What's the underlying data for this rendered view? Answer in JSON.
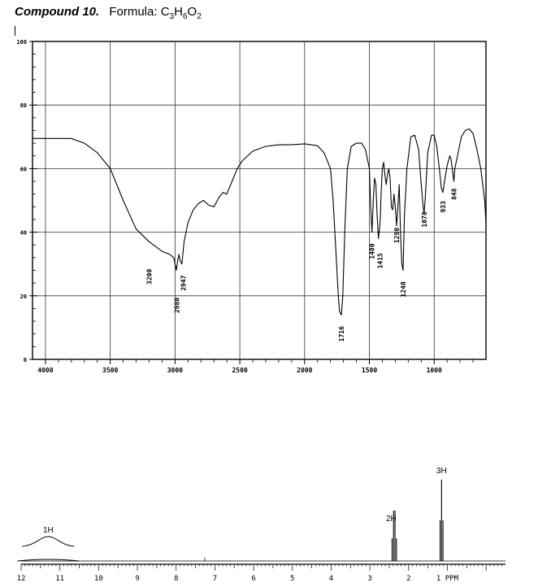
{
  "header": {
    "compound": "Compound 10.",
    "formula_label": "Formula:",
    "formula_value": "C3H6O2"
  },
  "chart_data": [
    {
      "type": "line",
      "xlim": [
        4100,
        600
      ],
      "ylim": [
        0,
        100
      ],
      "x_ticks": [
        "4000",
        "3500",
        "3000",
        "2500",
        "2000",
        "1500",
        "1000"
      ],
      "x_tick_values": [
        4000,
        3500,
        3000,
        2500,
        2000,
        1500,
        1000
      ],
      "y_ticks": [
        "100",
        "80",
        "60",
        "40",
        "20",
        "0"
      ],
      "y_tick_values": [
        100,
        80,
        60,
        40,
        20,
        0
      ],
      "grid": true,
      "series": [
        {
          "x": [
            4100,
            3950,
            3800,
            3700,
            3600,
            3500,
            3400,
            3300,
            3200,
            3100,
            3040,
            3010,
            2990,
            2980,
            2970,
            2960,
            2947,
            2930,
            2900,
            2860,
            2820,
            2780,
            2740,
            2700,
            2660,
            2630,
            2600,
            2560,
            2520,
            2480,
            2400,
            2300,
            2200,
            2100,
            2000,
            1900,
            1850,
            1800,
            1780,
            1760,
            1740,
            1730,
            1716,
            1705,
            1690,
            1670,
            1640,
            1600,
            1560,
            1530,
            1500,
            1490,
            1480,
            1470,
            1460,
            1450,
            1440,
            1430,
            1420,
            1415,
            1410,
            1400,
            1390,
            1380,
            1370,
            1360,
            1350,
            1340,
            1330,
            1320,
            1310,
            1300,
            1290,
            1280,
            1270,
            1260,
            1250,
            1240,
            1230,
            1210,
            1180,
            1150,
            1120,
            1100,
            1085,
            1078,
            1070,
            1050,
            1020,
            1000,
            980,
            960,
            945,
            933,
            920,
            900,
            880,
            870,
            860,
            848,
            840,
            820,
            790,
            760,
            730,
            700,
            670,
            640,
            610,
            600
          ],
          "y": [
            69.5,
            69.5,
            69.5,
            68,
            65,
            60,
            50,
            41,
            37,
            34,
            33,
            32,
            28,
            31,
            33,
            31,
            30,
            37,
            43,
            47,
            49,
            50,
            48.5,
            48,
            51,
            52.5,
            52,
            56,
            60,
            62.5,
            65.5,
            67,
            67.5,
            67.5,
            67.8,
            67.2,
            65,
            60,
            50,
            35,
            20,
            15,
            14,
            20,
            40,
            60,
            67,
            68,
            68,
            66,
            60,
            48,
            40,
            50,
            57,
            55,
            45,
            38,
            42,
            45,
            52,
            60,
            62,
            58,
            55,
            58,
            60,
            57,
            48,
            47,
            52,
            48,
            42,
            48,
            55,
            40,
            30,
            28,
            45,
            60,
            70,
            70.5,
            66,
            55,
            48,
            46,
            50,
            65,
            70.5,
            70.5,
            67,
            60,
            54,
            52.5,
            56,
            61,
            64,
            63,
            60,
            56,
            60,
            64,
            70,
            72,
            72.5,
            71,
            66,
            60,
            50,
            43
          ]
        }
      ],
      "annotations": [
        {
          "label": "3200",
          "x": 3200,
          "y": 26
        },
        {
          "label": "2980",
          "x": 2985,
          "y": 17
        },
        {
          "label": "2947",
          "x": 2935,
          "y": 24
        },
        {
          "label": "1716",
          "x": 1716,
          "y": 8
        },
        {
          "label": "1480",
          "x": 1480,
          "y": 34
        },
        {
          "label": "1415",
          "x": 1418,
          "y": 31
        },
        {
          "label": "1290",
          "x": 1290,
          "y": 39
        },
        {
          "label": "1240",
          "x": 1240,
          "y": 22
        },
        {
          "label": "1078",
          "x": 1078,
          "y": 44
        },
        {
          "label": "933",
          "x": 933,
          "y": 48
        },
        {
          "label": "848",
          "x": 848,
          "y": 52
        }
      ]
    },
    {
      "type": "line",
      "xlim": [
        12,
        -0.5
      ],
      "x_ticks": [
        "12",
        "11",
        "10",
        "9",
        "8",
        "7",
        "6",
        "5",
        "4",
        "3",
        "2",
        "1 PPM"
      ],
      "x_tick_values": [
        12,
        11,
        10,
        9,
        8,
        7,
        6,
        5,
        4,
        3,
        2,
        1
      ],
      "peaks": [
        {
          "shift": 11.3,
          "shape": "broad",
          "integral": "1H"
        },
        {
          "shift": 2.37,
          "shape": "quartet",
          "integral": "2H"
        },
        {
          "shift": 1.15,
          "shape": "triplet",
          "integral": "3H"
        }
      ],
      "annotations": [
        {
          "label": "1H",
          "x": 11.3
        },
        {
          "label": "2H",
          "x": 2.45
        },
        {
          "label": "3H",
          "x": 1.15
        }
      ]
    }
  ]
}
